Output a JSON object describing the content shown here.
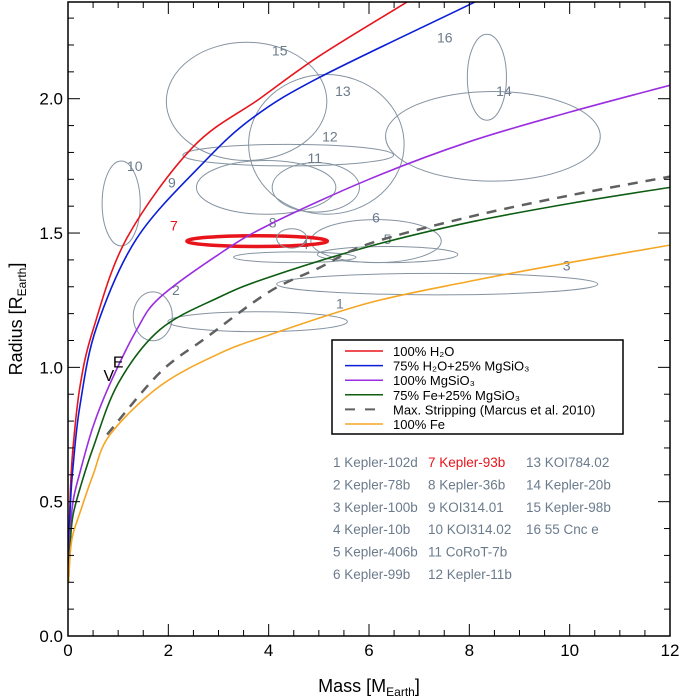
{
  "chart_data": {
    "type": "line",
    "xlabel": "Mass [M_Earth]",
    "ylabel": "Radius [R_Earth]",
    "xlim": [
      0,
      12
    ],
    "ylim": [
      0,
      2.36
    ],
    "xticks": [
      "0",
      "2",
      "4",
      "6",
      "8",
      "10",
      "12"
    ],
    "yticks": [
      "0.0",
      "0.5",
      "1.0",
      "1.5",
      "2.0"
    ],
    "grid": false,
    "legend_placement": "center-right",
    "series": [
      {
        "name": "100% H₂O",
        "color": "#e8141c",
        "dash": false,
        "x": [
          0.01,
          0.05,
          0.1,
          0.24,
          0.5,
          1.17,
          2.49,
          3.82,
          5.02,
          6.67,
          7.0
        ],
        "y": [
          0.3,
          0.55,
          0.7,
          0.93,
          1.14,
          1.48,
          1.82,
          2.0,
          2.16,
          2.35,
          2.39
        ]
      },
      {
        "name": "75% H₂O+25% MgSiO₃",
        "color": "#0a1ed8",
        "dash": false,
        "x": [
          0.01,
          0.05,
          0.1,
          0.24,
          0.57,
          1.37,
          2.69,
          3.69,
          5.02,
          8.0,
          8.3
        ],
        "y": [
          0.28,
          0.5,
          0.63,
          0.86,
          1.15,
          1.48,
          1.76,
          1.93,
          2.08,
          2.35,
          2.38
        ]
      },
      {
        "name": "100% MgSiO₃",
        "color": "#9a2ee0",
        "dash": false,
        "x": [
          0.01,
          0.03,
          0.1,
          0.24,
          0.5,
          0.84,
          1.37,
          1.83,
          3,
          4,
          6,
          8,
          10,
          12
        ],
        "y": [
          0.2,
          0.35,
          0.5,
          0.61,
          0.78,
          0.94,
          1.14,
          1.26,
          1.42,
          1.53,
          1.7,
          1.84,
          1.95,
          2.05
        ]
      },
      {
        "name": "75% Fe+25% MgSiO₃",
        "color": "#0d5c12",
        "dash": false,
        "x": [
          0.01,
          0.05,
          0.1,
          0.24,
          0.5,
          1,
          1.83,
          3,
          4,
          6,
          8,
          10,
          12
        ],
        "y": [
          0.2,
          0.36,
          0.45,
          0.55,
          0.7,
          0.94,
          1.14,
          1.26,
          1.335,
          1.45,
          1.54,
          1.61,
          1.67
        ]
      },
      {
        "name": "Max. Stripping (Marcus et al. 2010)",
        "color": "#606060",
        "dash": true,
        "x": [
          0.78,
          1.83,
          2.75,
          4,
          5,
          6,
          8,
          10,
          12
        ],
        "y": [
          0.75,
          0.98,
          1.11,
          1.28,
          1.37,
          1.46,
          1.56,
          1.64,
          1.71
        ]
      },
      {
        "name": "100% Fe",
        "color": "#f5a623",
        "dash": false,
        "x": [
          0.01,
          0.05,
          0.1,
          0.24,
          0.5,
          0.84,
          1.83,
          3,
          4,
          6,
          8,
          10,
          12
        ],
        "y": [
          0.2,
          0.32,
          0.38,
          0.46,
          0.6,
          0.75,
          0.93,
          1.05,
          1.12,
          1.24,
          1.32,
          1.39,
          1.455
        ]
      }
    ],
    "planets": [
      {
        "id": "1",
        "name": "Kepler-102d",
        "mass": 3.78,
        "radius": 1.17,
        "mass_err": 1.79,
        "radius_err": 0.037,
        "label_at": [
          5.42,
          1.22
        ]
      },
      {
        "id": "2",
        "name": "Kepler-78b",
        "mass": 1.69,
        "radius": 1.19,
        "mass_err": 0.39,
        "radius_err": 0.091,
        "label_at": [
          2.15,
          1.27
        ]
      },
      {
        "id": "3",
        "name": "Kepler-100b",
        "mass": 7.36,
        "radius": 1.31,
        "mass_err": 3.2,
        "radius_err": 0.04,
        "label_at": [
          9.94,
          1.36
        ]
      },
      {
        "id": "4",
        "name": "Kepler-10b",
        "mass": 4.52,
        "radius": 1.41,
        "mass_err": 1.22,
        "radius_err": 0.02,
        "label_at": [
          4.72,
          1.44
        ]
      },
      {
        "id": "5",
        "name": "Kepler-406b",
        "mass": 6.37,
        "radius": 1.42,
        "mass_err": 1.4,
        "radius_err": 0.03,
        "label_at": [
          6.37,
          1.46
        ]
      },
      {
        "id": "6",
        "name": "Kepler-99b",
        "mass": 6.14,
        "radius": 1.47,
        "mass_err": 1.3,
        "radius_err": 0.08,
        "label_at": [
          6.14,
          1.54
        ]
      },
      {
        "id": "7",
        "name": "Kepler-93b",
        "mass": 3.77,
        "radius": 1.47,
        "mass_err": 1.4,
        "radius_err": 0.02,
        "label_at": [
          2.11,
          1.51
        ],
        "highlight": true
      },
      {
        "id": "8",
        "name": "Kepler-36b",
        "mass": 4.46,
        "radius": 1.48,
        "mass_err": 0.3,
        "radius_err": 0.036,
        "label_at": [
          4.08,
          1.52
        ]
      },
      {
        "id": "9",
        "name": "KOI314.01",
        "mass": 3.95,
        "radius": 1.67,
        "mass_err": 1.39,
        "radius_err": 0.1,
        "label_at": [
          2.07,
          1.67
        ]
      },
      {
        "id": "10",
        "name": "KOI314.02",
        "mass": 1.06,
        "radius": 1.61,
        "mass_err": 0.38,
        "radius_err": 0.158,
        "label_at": [
          1.33,
          1.73
        ]
      },
      {
        "id": "11",
        "name": "CoRoT-7b",
        "mass": 4.94,
        "radius": 1.67,
        "mass_err": 0.87,
        "radius_err": 0.092,
        "label_at": [
          4.92,
          1.76
        ]
      },
      {
        "id": "12",
        "name": "Kepler-11b",
        "mass": 4.39,
        "radius": 1.79,
        "mass_err": 2.1,
        "radius_err": 0.04,
        "label_at": [
          5.22,
          1.84
        ]
      },
      {
        "id": "13",
        "name": "KOI784.02",
        "mass": 5.15,
        "radius": 1.83,
        "mass_err": 1.55,
        "radius_err": 0.26,
        "label_at": [
          5.48,
          2.01
        ]
      },
      {
        "id": "14",
        "name": "Kepler-20b",
        "mass": 8.47,
        "radius": 1.86,
        "mass_err": 2.14,
        "radius_err": 0.167,
        "label_at": [
          8.69,
          2.01
        ]
      },
      {
        "id": "15",
        "name": "Kepler-98b",
        "mass": 3.56,
        "radius": 1.99,
        "mass_err": 1.6,
        "radius_err": 0.22,
        "label_at": [
          4.22,
          2.16
        ]
      },
      {
        "id": "16",
        "name": "55 Cnc e",
        "mass": 8.35,
        "radius": 2.08,
        "mass_err": 0.39,
        "radius_err": 0.16,
        "label_at": [
          7.51,
          2.21
        ]
      }
    ],
    "solar_system": [
      {
        "label": "V",
        "mass": 0.815,
        "radius": 0.95
      },
      {
        "label": "E",
        "mass": 1.0,
        "radius": 1.0
      }
    ],
    "colors": {
      "ellipse": "#8593a1",
      "ellipse_label": "#6b7b8c",
      "highlight": "#e8141c"
    }
  }
}
